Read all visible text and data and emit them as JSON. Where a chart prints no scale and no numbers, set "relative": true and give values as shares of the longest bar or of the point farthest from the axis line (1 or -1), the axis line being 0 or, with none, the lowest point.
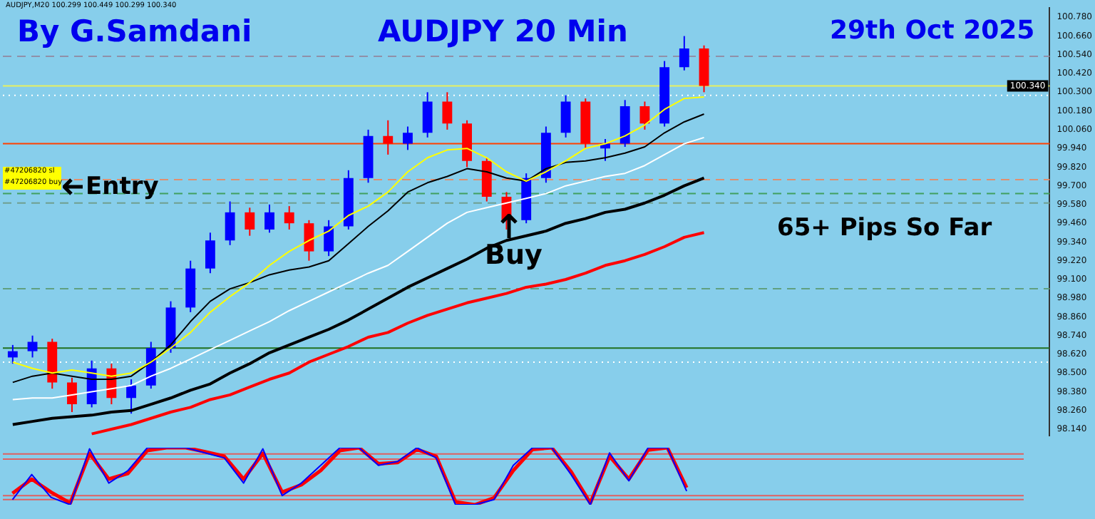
{
  "chart_data": [
    {
      "type": "candlestick",
      "title": "AUDJPY 20 Min",
      "categories": [
        null,
        null,
        null,
        null,
        null,
        null,
        null,
        null,
        null,
        null,
        null,
        null,
        null,
        null,
        null,
        null,
        null,
        null,
        null,
        null,
        null,
        null,
        null,
        null,
        null,
        null,
        null,
        null,
        null,
        null,
        null,
        null,
        null,
        null,
        null,
        null,
        null,
        null,
        null,
        null,
        null,
        null,
        null,
        null,
        null,
        null,
        null,
        null,
        null,
        null,
        null,
        null,
        null
      ],
      "ohlc": [
        [
          98.6,
          98.68,
          98.56,
          98.64
        ],
        [
          98.64,
          98.74,
          98.6,
          98.7
        ],
        [
          98.7,
          98.72,
          98.4,
          98.44
        ],
        [
          98.44,
          98.47,
          98.25,
          98.3
        ],
        [
          98.3,
          98.58,
          98.28,
          98.53
        ],
        [
          98.53,
          98.56,
          98.3,
          98.34
        ],
        [
          98.34,
          98.46,
          98.24,
          98.42
        ],
        [
          98.42,
          98.7,
          98.4,
          98.66
        ],
        [
          98.66,
          98.96,
          98.63,
          98.92
        ],
        [
          98.92,
          99.22,
          98.89,
          99.17
        ],
        [
          99.17,
          99.4,
          99.14,
          99.35
        ],
        [
          99.35,
          99.6,
          99.32,
          99.53
        ],
        [
          99.53,
          99.56,
          99.38,
          99.42
        ],
        [
          99.42,
          99.58,
          99.4,
          99.53
        ],
        [
          99.53,
          99.57,
          99.42,
          99.46
        ],
        [
          99.46,
          99.48,
          99.22,
          99.28
        ],
        [
          99.28,
          99.48,
          99.25,
          99.44
        ],
        [
          99.44,
          99.8,
          99.42,
          99.75
        ],
        [
          99.75,
          100.06,
          99.72,
          100.02
        ],
        [
          100.02,
          100.12,
          99.9,
          99.97
        ],
        [
          99.97,
          100.08,
          99.93,
          100.04
        ],
        [
          100.04,
          100.3,
          100.01,
          100.24
        ],
        [
          100.24,
          100.3,
          100.06,
          100.1
        ],
        [
          100.1,
          100.12,
          99.82,
          99.86
        ],
        [
          99.86,
          99.88,
          99.6,
          99.63
        ],
        [
          99.63,
          99.66,
          99.42,
          99.48
        ],
        [
          99.48,
          99.78,
          99.46,
          99.75
        ],
        [
          99.75,
          100.08,
          99.72,
          100.04
        ],
        [
          100.04,
          100.28,
          100.01,
          100.24
        ],
        [
          100.24,
          100.26,
          99.94,
          99.97
        ],
        [
          99.94,
          100.0,
          99.86,
          99.97
        ],
        [
          99.97,
          100.25,
          99.95,
          100.21
        ],
        [
          100.21,
          100.24,
          100.06,
          100.1
        ],
        [
          100.1,
          100.5,
          100.08,
          100.46
        ],
        [
          100.46,
          100.66,
          100.44,
          100.58
        ],
        [
          100.58,
          100.6,
          100.3,
          100.34
        ],
        null,
        null,
        null,
        null,
        null,
        null,
        null,
        null,
        null,
        null,
        null,
        null,
        null,
        null,
        null,
        null,
        null
      ],
      "colors": [
        "#0000ff",
        "#0000ff",
        "#ff0000",
        "#ff0000",
        "#0000ff",
        "#ff0000",
        "#0000ff",
        "#0000ff",
        "#0000ff",
        "#0000ff",
        "#0000ff",
        "#0000ff",
        "#ff0000",
        "#0000ff",
        "#ff0000",
        "#ff0000",
        "#0000ff",
        "#0000ff",
        "#0000ff",
        "#ff0000",
        "#0000ff",
        "#0000ff",
        "#ff0000",
        "#ff0000",
        "#ff0000",
        "#ff0000",
        "#0000ff",
        "#0000ff",
        "#0000ff",
        "#ff0000",
        "#0000ff",
        "#0000ff",
        "#ff0000",
        "#0000ff",
        "#0000ff",
        "#ff0000",
        null,
        null,
        null,
        null,
        null,
        null,
        null,
        null,
        null,
        null,
        null,
        null,
        null,
        null,
        null,
        null,
        null
      ],
      "series": [
        {
          "type": "line",
          "color": "#ffff00",
          "values": [
            98.57,
            98.53,
            98.5,
            98.52,
            98.5,
            98.48,
            98.5,
            98.57,
            98.66,
            98.76,
            98.89,
            98.99,
            99.08,
            99.19,
            99.28,
            99.35,
            99.41,
            99.51,
            99.57,
            99.66,
            99.79,
            99.88,
            99.93,
            99.94,
            99.88,
            99.79,
            99.73,
            99.79,
            99.86,
            99.94,
            99.97,
            100.02,
            100.09,
            100.19,
            100.26,
            100.27,
            null,
            null,
            null,
            null,
            null,
            null,
            null,
            null,
            null,
            null,
            null,
            null,
            null,
            null,
            null,
            null,
            null
          ]
        },
        {
          "type": "line",
          "color": "#000000",
          "values": [
            98.44,
            98.48,
            98.5,
            98.48,
            98.46,
            98.46,
            98.48,
            98.57,
            98.68,
            98.83,
            98.96,
            99.04,
            99.08,
            99.13,
            99.16,
            99.18,
            99.22,
            99.33,
            99.44,
            99.54,
            99.66,
            99.72,
            99.76,
            99.81,
            99.79,
            99.75,
            99.73,
            99.81,
            99.85,
            99.86,
            99.88,
            99.91,
            99.95,
            100.04,
            100.11,
            100.16,
            null,
            null,
            null,
            null,
            null,
            null,
            null,
            null,
            null,
            null,
            null,
            null,
            null,
            null,
            null,
            null,
            null
          ]
        },
        {
          "type": "line",
          "color": "#ffffff",
          "values": [
            98.33,
            98.34,
            98.34,
            98.36,
            98.38,
            98.4,
            98.42,
            98.48,
            98.53,
            98.59,
            98.65,
            98.71,
            98.77,
            98.83,
            98.9,
            98.96,
            99.02,
            99.08,
            99.14,
            99.19,
            99.28,
            99.37,
            99.46,
            99.53,
            99.56,
            99.59,
            99.62,
            99.65,
            99.7,
            99.73,
            99.76,
            99.78,
            99.83,
            99.9,
            99.97,
            100.01,
            null,
            null,
            null,
            null,
            null,
            null,
            null,
            null,
            null,
            null,
            null,
            null,
            null,
            null,
            null,
            null,
            null
          ]
        },
        {
          "type": "line",
          "color": "#000000",
          "values": [
            98.17,
            98.19,
            98.21,
            98.22,
            98.23,
            98.25,
            98.26,
            98.3,
            98.34,
            98.39,
            98.43,
            98.5,
            98.56,
            98.63,
            98.68,
            98.73,
            98.78,
            98.84,
            98.91,
            98.98,
            99.05,
            99.11,
            99.17,
            99.23,
            99.3,
            99.35,
            99.38,
            99.41,
            99.46,
            99.49,
            99.53,
            99.55,
            99.59,
            99.64,
            99.7,
            99.75,
            null,
            null,
            null,
            null,
            null,
            null,
            null,
            null,
            null,
            null,
            null,
            null,
            null,
            null,
            null,
            null,
            null
          ]
        },
        {
          "type": "line",
          "color": "#ff0000",
          "values": [
            null,
            null,
            null,
            null,
            98.11,
            98.14,
            98.17,
            98.21,
            98.25,
            98.28,
            98.33,
            98.36,
            98.41,
            98.46,
            98.5,
            98.57,
            98.62,
            98.67,
            98.73,
            98.76,
            98.82,
            98.87,
            98.91,
            98.95,
            98.98,
            99.01,
            99.05,
            99.07,
            99.1,
            99.14,
            99.19,
            99.22,
            99.26,
            99.31,
            99.37,
            99.4,
            null,
            null,
            null,
            null,
            null,
            null,
            null,
            null,
            null,
            null,
            null,
            null,
            null,
            null,
            null,
            null,
            null
          ]
        }
      ],
      "ylim": [
        98.1,
        100.84
      ],
      "yticks": [
        {
          "value": 100.78,
          "label": "100.780"
        },
        {
          "value": 100.66,
          "label": "100.660"
        },
        {
          "value": 100.54,
          "label": "100.540"
        },
        {
          "value": 100.42,
          "label": "100.420"
        },
        {
          "value": 100.3,
          "label": "100.300"
        },
        {
          "value": 100.18,
          "label": "100.180"
        },
        {
          "value": 100.06,
          "label": "100.060"
        },
        {
          "value": 99.94,
          "label": "99.940"
        },
        {
          "value": 99.82,
          "label": "99.820"
        },
        {
          "value": 99.7,
          "label": "99.700"
        },
        {
          "value": 99.58,
          "label": "99.580"
        },
        {
          "value": 99.46,
          "label": "99.460"
        },
        {
          "value": 99.34,
          "label": "99.340"
        },
        {
          "value": 99.22,
          "label": "99.220"
        },
        {
          "value": 99.1,
          "label": "99.100"
        },
        {
          "value": 98.98,
          "label": "98.980"
        },
        {
          "value": 98.86,
          "label": "98.860"
        },
        {
          "value": 98.74,
          "label": "98.740"
        },
        {
          "value": 98.62,
          "label": "98.620"
        },
        {
          "value": 98.5,
          "label": "98.500"
        },
        {
          "value": 98.38,
          "label": "98.380"
        },
        {
          "value": 98.26,
          "label": "98.260"
        },
        {
          "value": 98.14,
          "label": "98.140"
        }
      ],
      "tick_labels": "y",
      "ref_lines": [
        {
          "axis": "y",
          "value": 100.34,
          "label": "100.340",
          "color": "#e8f060",
          "line_style": "solid"
        },
        {
          "axis": "y",
          "value": 100.53,
          "color": "#9090a8",
          "line_style": "dashed"
        },
        {
          "axis": "y",
          "value": 100.28,
          "color": "#ffffff",
          "line_style": "dotted"
        },
        {
          "axis": "y",
          "value": 99.97,
          "color": "#ff4000",
          "line_style": "solid"
        },
        {
          "axis": "y",
          "value": 99.74,
          "color": "#e09070",
          "line_style": "dashed"
        },
        {
          "axis": "y",
          "value": 99.65,
          "color": "#40a060",
          "line_style": "dashed"
        },
        {
          "axis": "y",
          "value": 99.59,
          "color": "#70a090",
          "line_style": "dashed"
        },
        {
          "axis": "y",
          "value": 99.04,
          "color": "#60a080",
          "line_style": "dashed"
        },
        {
          "axis": "y",
          "value": 98.66,
          "color": "#207020",
          "line_style": "solid"
        },
        {
          "axis": "y",
          "value": 98.57,
          "color": "#ffffff",
          "line_style": "dotted"
        }
      ],
      "annotations": [
        "By G.Samdani",
        "29th Oct 2025",
        "65+ Pips So Far",
        "Entry",
        "Buy",
        "#47206820 sl",
        "#47206820 buy",
        "AUDJPY,M20  100.299 100.449 100.299 100.340"
      ]
    },
    {
      "type": "line",
      "relative": true,
      "tick_labels": false,
      "categories": [
        null,
        null,
        null,
        null,
        null,
        null,
        null,
        null,
        null,
        null,
        null,
        null,
        null,
        null,
        null,
        null,
        null,
        null,
        null,
        null,
        null,
        null,
        null,
        null,
        null,
        null,
        null,
        null,
        null,
        null,
        null,
        null,
        null,
        null,
        null,
        null,
        null,
        null,
        null,
        null,
        null,
        null,
        null,
        null,
        null,
        null,
        null,
        null,
        null,
        null,
        null,
        null,
        null
      ],
      "series": [
        {
          "color": "#0000ff",
          "values": [
            0.09,
            0.53,
            0.13,
            0,
            0.98,
            0.38,
            0.6,
            1,
            1,
            1,
            0.91,
            0.82,
            0.38,
            0.98,
            0.16,
            0.38,
            0.69,
            1,
            1,
            0.69,
            0.76,
            1,
            0.82,
            0,
            0,
            0.09,
            0.69,
            1,
            1,
            0.53,
            0,
            0.91,
            0.42,
            1,
            1,
            0.24,
            null,
            null,
            null,
            null,
            null,
            null,
            null,
            null,
            null,
            null,
            null,
            null,
            null,
            null,
            null,
            null,
            null
          ]
        },
        {
          "color": "#ff0000",
          "values": [
            0.2,
            0.45,
            0.22,
            0.03,
            0.9,
            0.45,
            0.55,
            0.95,
            1,
            1,
            0.93,
            0.85,
            0.45,
            0.9,
            0.22,
            0.35,
            0.6,
            0.95,
            1,
            0.72,
            0.74,
            0.97,
            0.85,
            0.05,
            0,
            0.12,
            0.6,
            0.97,
            1,
            0.58,
            0.03,
            0.85,
            0.45,
            0.96,
            1,
            0.3,
            null,
            null,
            null,
            null,
            null,
            null,
            null,
            null,
            null,
            null,
            null,
            null,
            null,
            null,
            null,
            null,
            null
          ]
        }
      ],
      "ref_lines": [
        {
          "axis": "y",
          "value": 0.89,
          "color": "#e06060",
          "line_style": "solid"
        },
        {
          "axis": "y",
          "value": 0.8,
          "color": "#e06060",
          "line_style": "solid"
        },
        {
          "axis": "y",
          "value": 0.16,
          "color": "#e06060",
          "line_style": "solid"
        },
        {
          "axis": "y",
          "value": 0.09,
          "color": "#e06060",
          "line_style": "solid"
        }
      ]
    }
  ]
}
